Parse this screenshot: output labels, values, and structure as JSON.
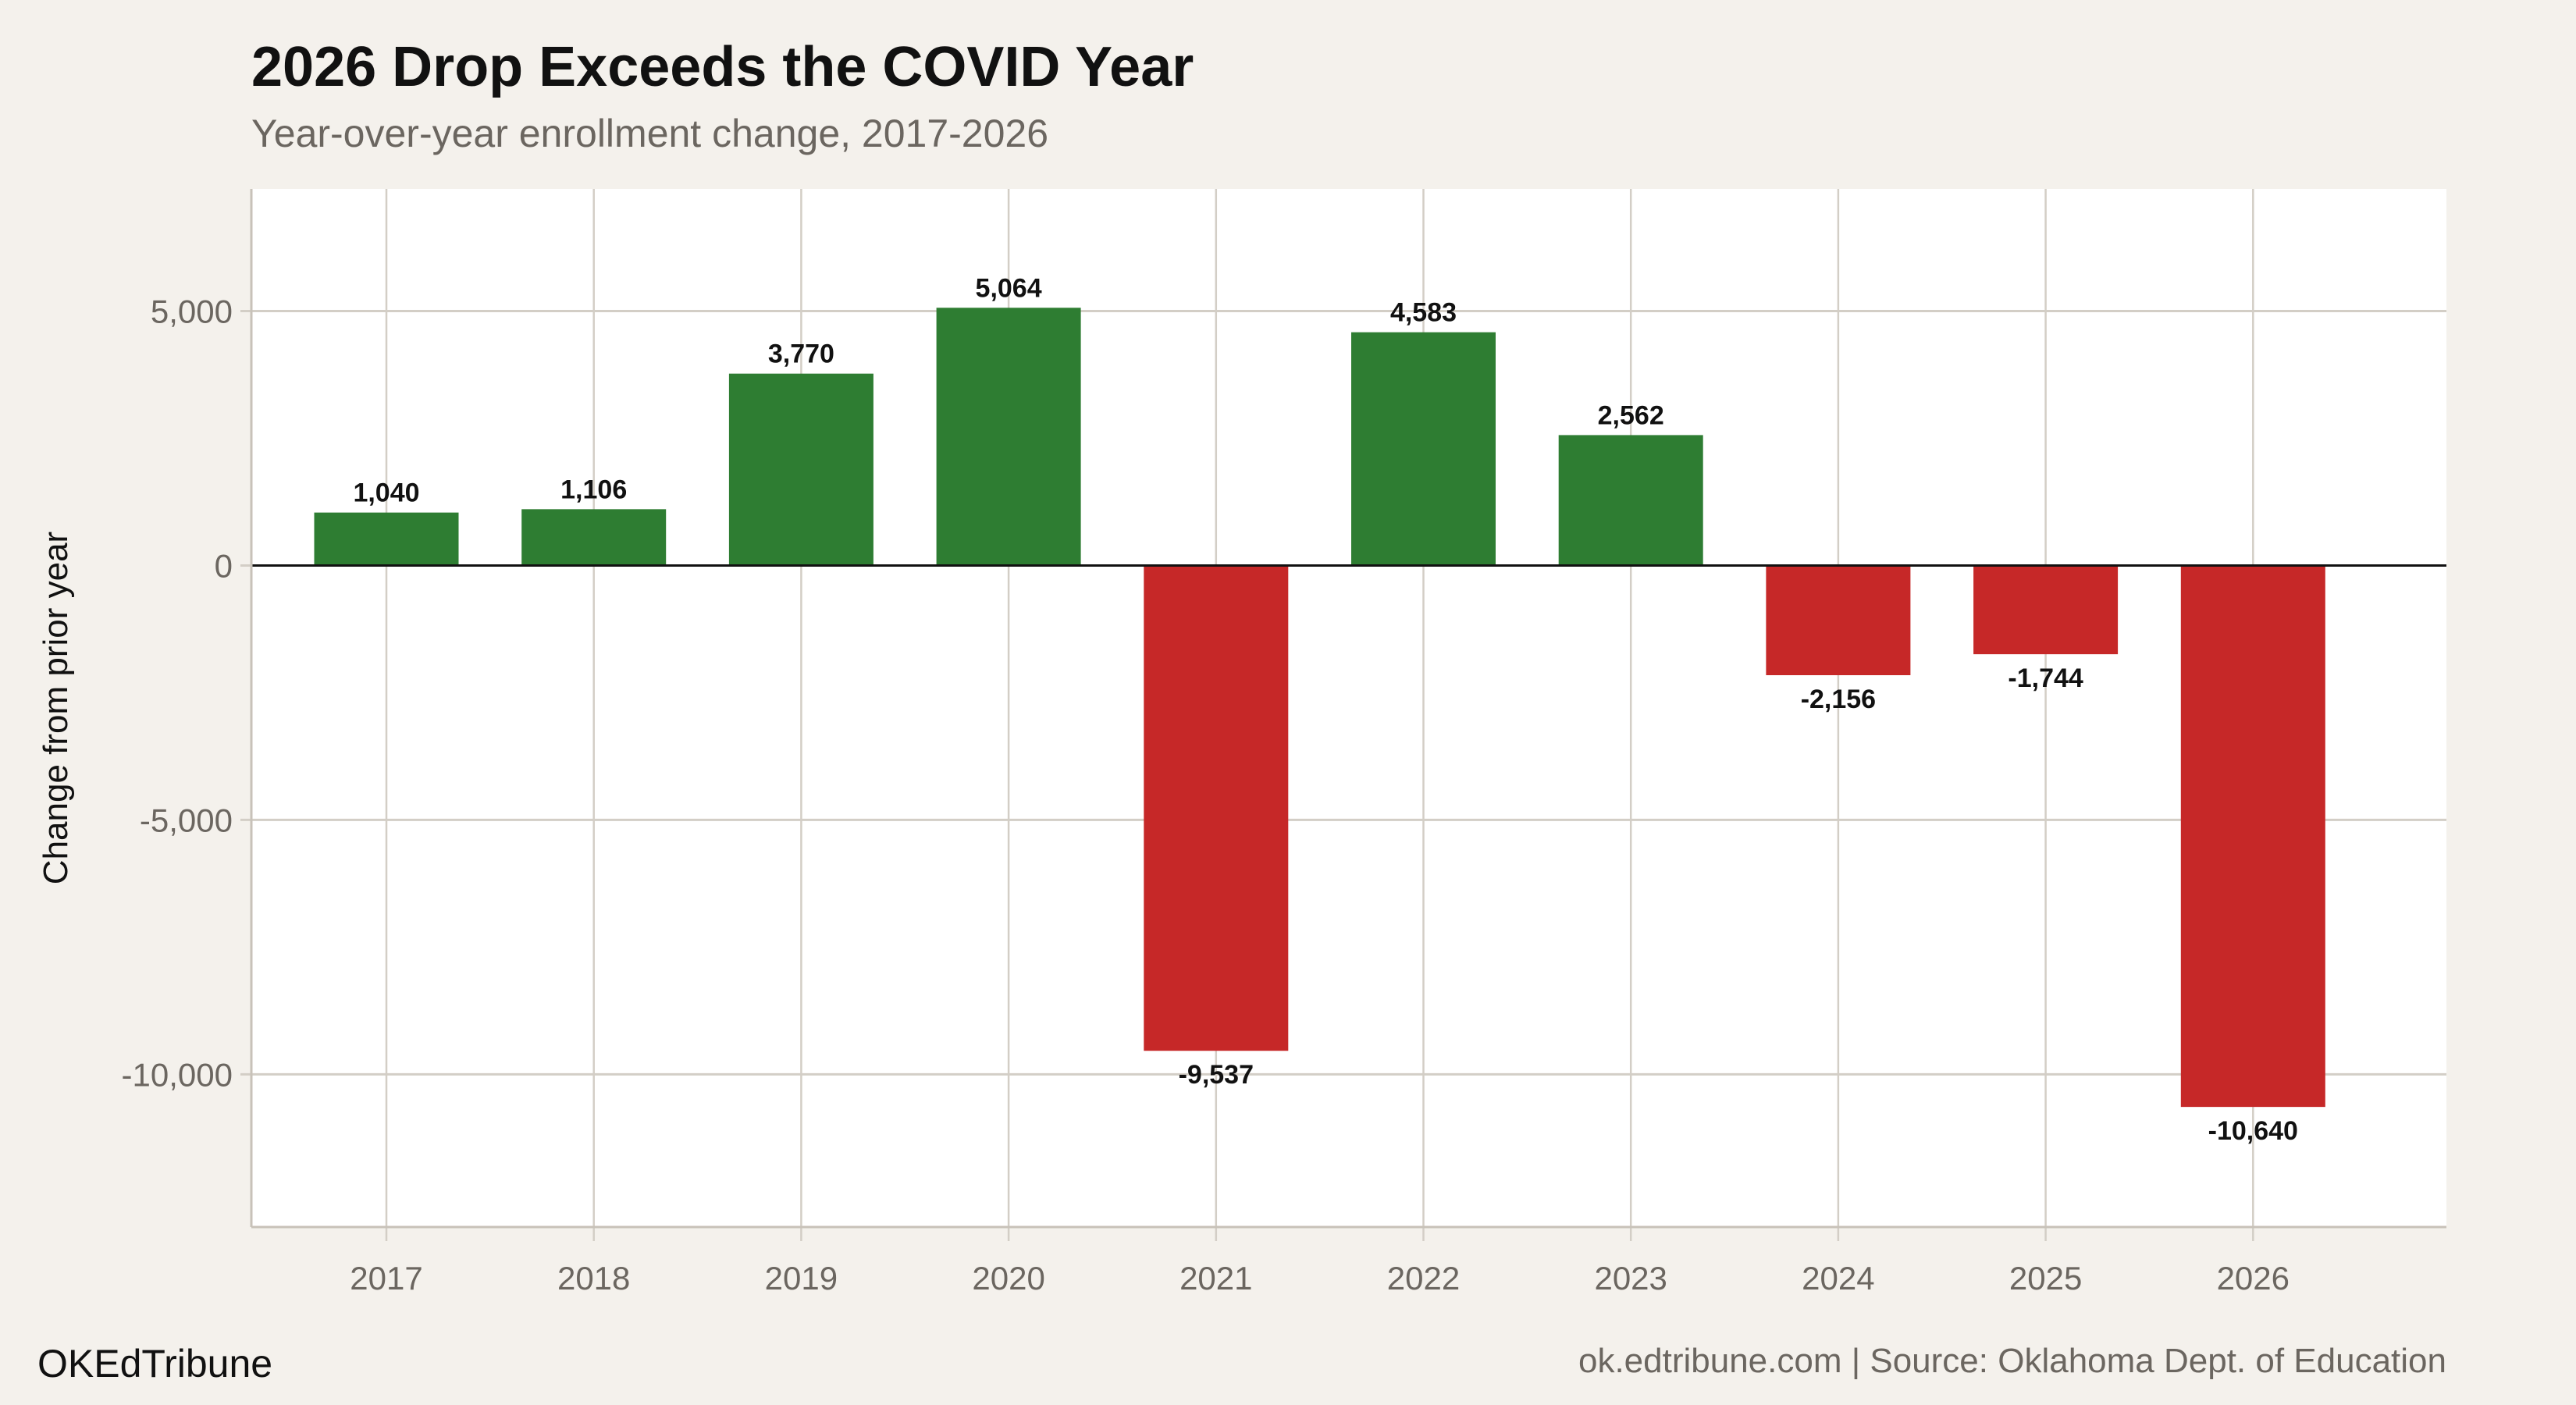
{
  "chart_data": {
    "type": "bar",
    "title": "2026 Drop Exceeds the COVID Year",
    "subtitle": "Year-over-year enrollment change, 2017-2026",
    "xlabel": "",
    "ylabel": "Change from prior year",
    "categories": [
      "2017",
      "2018",
      "2019",
      "2020",
      "2021",
      "2022",
      "2023",
      "2024",
      "2025",
      "2026"
    ],
    "values": [
      1040,
      1106,
      3770,
      5064,
      -9537,
      4583,
      2562,
      -2156,
      -1744,
      -10640
    ],
    "data_labels": [
      "1,040",
      "1,106",
      "3,770",
      "5,064",
      "-9,537",
      "4,583",
      "2,562",
      "-2,156",
      "-1,744",
      "-10,640"
    ],
    "ylim": [
      -13000,
      7400
    ],
    "yticks": [
      5000,
      0,
      -5000,
      -10000
    ],
    "ytick_labels": [
      "5,000",
      "0",
      "-5,000",
      "-10,000"
    ],
    "grid": true,
    "colors": {
      "positive": "#2e7d32",
      "negative": "#c62828",
      "background": "#f4f1ec",
      "panel": "#ffffff",
      "grid": "#d3cec6"
    }
  },
  "footer": {
    "brand": "OKEdTribune",
    "source": "ok.edtribune.com | Source: Oklahoma Dept. of Education"
  }
}
